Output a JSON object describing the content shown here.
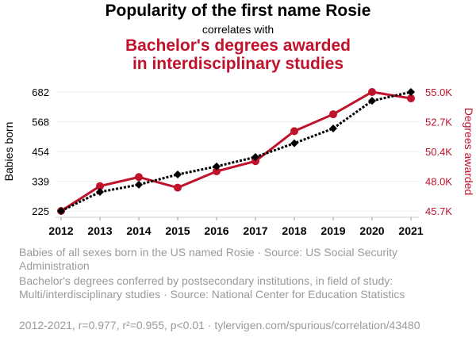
{
  "chart_data": {
    "type": "line",
    "title": "Popularity of the first name Rosie",
    "correlates": "correlates with",
    "subtitle_lines": [
      "Bachelor's degrees awarded",
      "in interdisciplinary studies"
    ],
    "x": [
      2012,
      2013,
      2014,
      2015,
      2016,
      2017,
      2018,
      2019,
      2020,
      2021
    ],
    "ylabel_left": "Babies born",
    "ylabel_right": "Degrees awarded",
    "yticks_left": [
      "225",
      "339",
      "454",
      "568",
      "682"
    ],
    "ylim_left": [
      225,
      682
    ],
    "yticks_right": [
      "45.7K",
      "48.0K",
      "50.4K",
      "52.7K",
      "55.0K"
    ],
    "ylim_right": [
      45700,
      55000
    ],
    "series": [
      {
        "name": "Babies of all sexes born in the US named Rosie · Source: US Social Security Administration",
        "axis": "left",
        "color": "#000000",
        "values": [
          225,
          298,
          326,
          365,
          396,
          432,
          485,
          542,
          648,
          682
        ]
      },
      {
        "name": "Bachelor's degrees conferred by postsecondary institutions, in field of study: Multi/interdisciplinary studies · Source: National Center for Education Statistics",
        "axis": "right",
        "color": "#c0122b",
        "values": [
          45700,
          47640,
          48350,
          47520,
          48800,
          49590,
          51940,
          53260,
          55000,
          54500
        ]
      }
    ],
    "footer": "2012-2021, r=0.977, r²=0.955, p<0.01 · tylervigen.com/spurious/correlation/43480"
  }
}
